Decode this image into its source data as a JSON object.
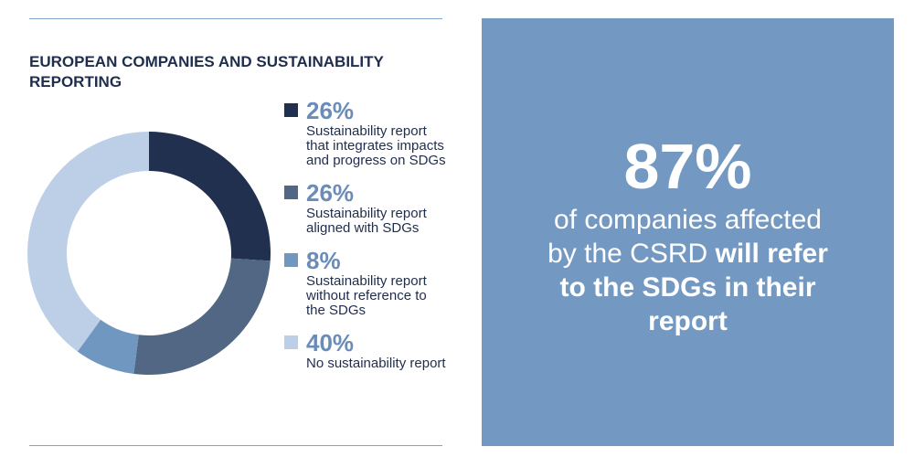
{
  "chart_data": {
    "type": "pie",
    "donut": true,
    "title": "EUROPEAN COMPANIES AND SUSTAINABILITY REPORTING",
    "categories": [
      "Sustainability report that integrates impacts and progress on SDGs",
      "Sustainability report aligned with SDGs",
      "Sustainability report without reference to the SDGs",
      "No sustainability report"
    ],
    "values": [
      26,
      26,
      8,
      40
    ],
    "value_labels": [
      "26%",
      "26%",
      "8%",
      "40%"
    ],
    "colors": [
      "#22304f",
      "#526783",
      "#7097c0",
      "#bccfe6"
    ]
  },
  "callout": {
    "stat": "87%",
    "text": "of companies affected by the CSRD",
    "emphasis": "will refer to the SDGs in their report"
  }
}
